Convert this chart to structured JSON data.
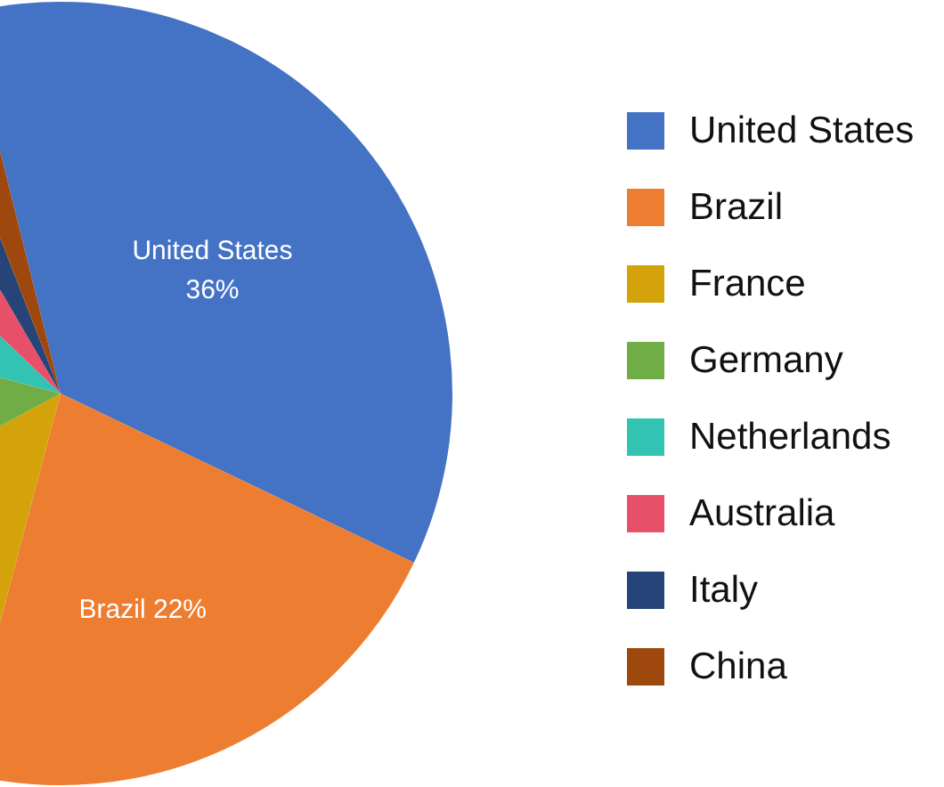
{
  "chart_data": {
    "type": "pie",
    "categories": [
      "United States",
      "Brazil",
      "France",
      "Germany",
      "Netherlands",
      "Australia",
      "Italy",
      "China"
    ],
    "values": [
      36,
      22,
      13,
      12,
      8,
      4.5,
      2.5,
      2
    ],
    "colors": [
      "#4472c4",
      "#ed7d31",
      "#d4a20a",
      "#70ad47",
      "#33c3b3",
      "#e8506a",
      "#264478",
      "#9e480e"
    ],
    "value_labels": [
      "36%",
      "22%",
      null,
      null,
      null,
      null,
      null,
      null
    ],
    "legend": "right"
  }
}
